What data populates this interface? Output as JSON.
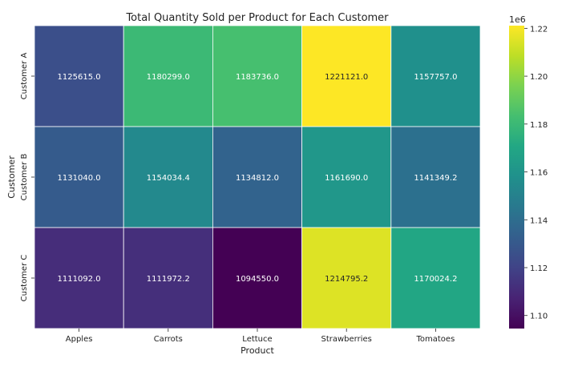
{
  "chart_data": {
    "type": "heatmap",
    "title": "Total Quantity Sold per Product for Each Customer",
    "xlabel": "Product",
    "ylabel": "Customer",
    "x": [
      "Apples",
      "Carrots",
      "Lettuce",
      "Strawberries",
      "Tomatoes"
    ],
    "y": [
      "Customer A",
      "Customer B",
      "Customer C"
    ],
    "values": [
      [
        1125615.0,
        1180299.0,
        1183736.0,
        1221121.0,
        1157757.0
      ],
      [
        1131040.0,
        1154034.4,
        1134812.0,
        1161690.0,
        1141349.2
      ],
      [
        1111092.0,
        1111972.2,
        1094550.0,
        1214795.2,
        1170024.2
      ]
    ],
    "cell_labels": [
      [
        "1125615.0",
        "1180299.0",
        "1183736.0",
        "1221121.0",
        "1157757.0"
      ],
      [
        "1131040.0",
        "1154034.4",
        "1134812.0",
        "1161690.0",
        "1141349.2"
      ],
      [
        "1111092.0",
        "1111972.2",
        "1094550.0",
        "1214795.2",
        "1170024.2"
      ]
    ],
    "colormap": "viridis",
    "colorbar": {
      "ticks": [
        1.1,
        1.12,
        1.14,
        1.16,
        1.18,
        1.2,
        1.22
      ],
      "tick_labels": [
        "1.10",
        "1.12",
        "1.14",
        "1.16",
        "1.18",
        "1.20",
        "1.22"
      ],
      "scale_label": "1e6",
      "multiplier": 1000000,
      "range": [
        1094550.0,
        1221121.0
      ]
    }
  }
}
